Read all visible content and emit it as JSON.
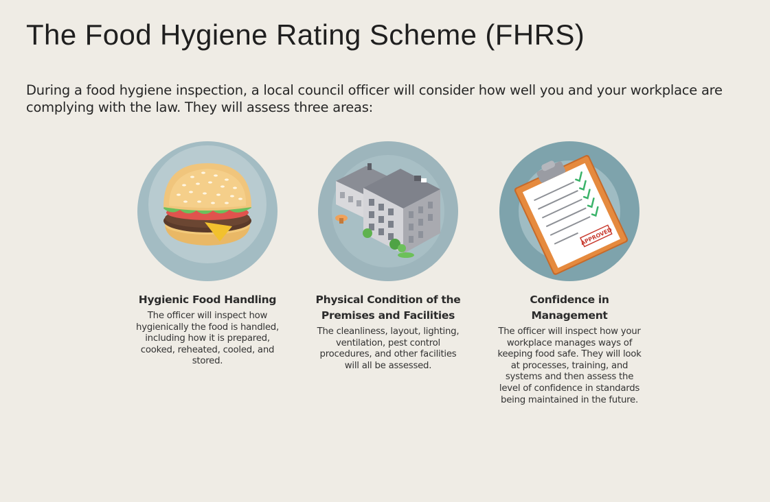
{
  "page": {
    "title": "The Food Hygiene Rating Scheme (FHRS)",
    "intro": "During a food hygiene inspection, a local council officer will consider how well you and your workplace are complying with the law. They will assess three areas:"
  },
  "areas": [
    {
      "icon": "burger-icon",
      "title": "Hygienic Food Handling",
      "description": "The officer will inspect how hygienically the food is handled, including how it is prepared, cooked, reheated, cooled, and stored."
    },
    {
      "icon": "building-icon",
      "title": "Physical Condition of the Premises and Facilities",
      "description": "The cleanliness, layout, lighting, ventilation, pest control procedures, and other facilities will all be assessed."
    },
    {
      "icon": "clipboard-icon",
      "title": "Confidence in Management",
      "description": "The officer will inspect how your workplace manages ways of keeping food safe. They will look at processes, training, and systems and then assess the level of confidence in standards being maintained in the future.",
      "stamp_text": "APPROVED"
    }
  ],
  "colors": {
    "background": "#efece5",
    "circle_outer": "#9fb8bf",
    "circle_inner": "#b4c8cd",
    "circle_dark": "#7da2ab",
    "check": "#3bb36a",
    "stamp": "#c83a2e"
  }
}
